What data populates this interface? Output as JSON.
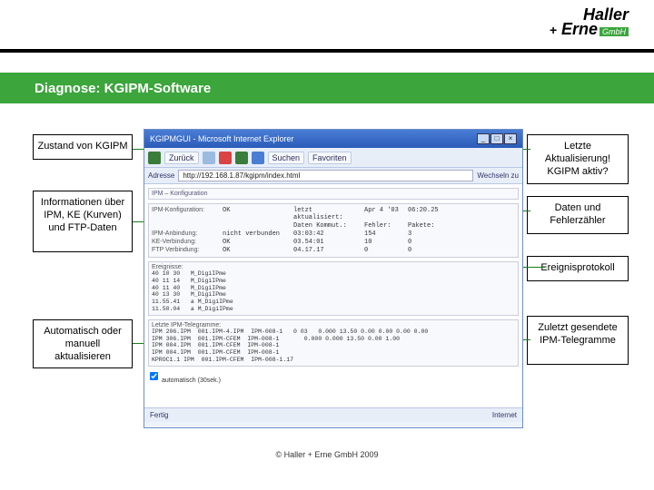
{
  "logo": {
    "line1": "Haller",
    "plus": "+",
    "line2": "Erne",
    "gmbh": "GmbH"
  },
  "header": {
    "title": "Diagnose: KGIPM-Software"
  },
  "callouts": {
    "left": [
      "Zustand von KGIPM",
      "Informationen über IPM, KE (Kurven) und FTP-Daten",
      "Automatisch oder manuell aktualisieren"
    ],
    "right": [
      "Letzte Aktualisierung! KGIPM aktiv?",
      "Daten und Fehlerzähler",
      "Ereignisprotokoll",
      "Zuletzt gesendete IPM-Telegramme"
    ]
  },
  "window": {
    "title": "KGIPMGUI - Microsoft Internet Explorer",
    "toolbar": {
      "back": "Zurück",
      "search": "Suchen",
      "fav": "Favoriten",
      "addr_label": "Adresse",
      "url": "http://192.168.1.87/kgipm/index.html",
      "go": "Wechseln zu"
    },
    "section_state": "IPM – Konfiguration",
    "info": {
      "rows": [
        {
          "lbl": "IPM-Konfiguration:",
          "v1": "OK",
          "v2": "letzt aktualisiert:",
          "v3": "Apr 4 '03",
          "v4": "06:20.25"
        },
        {
          "lbl": "",
          "v1": "",
          "v2": "Daten Kommut.:",
          "v3": "Fehler:",
          "v4": "Pakete:"
        },
        {
          "lbl": "IPM-Anbindung:",
          "v1": "nicht verbunden",
          "v2": "03:03:42",
          "v3": "154",
          "v4": "3"
        },
        {
          "lbl": "KE-Verbindung:",
          "v1": "OK",
          "v2": "03.54:01",
          "v3": "10",
          "v4": "0"
        },
        {
          "lbl": "FTP Verbindung:",
          "v1": "OK",
          "v2": "04.17.17",
          "v3": "0",
          "v4": "0"
        }
      ]
    },
    "events_label": "Ereignisse:",
    "events": [
      "40 10 30   M_DigiIPme",
      "40 11 14   M_DigiIPme",
      "40 11 40   M_DigiIPme",
      "40 13 30   M_DigiIPme",
      "11.55.41   a M_DigiIPme",
      "11.50.04   a M_DigiIPme"
    ],
    "telegrams_label": "Letzte IPM-Telegramme:",
    "telegrams": [
      "IPM 206.IPM  001.IPM-4.IPM  IPM-008-1   0 03   0.000 13.50 0.00 0.00 0.00 0.00",
      "IPM 306.IPM  001.IPM-CFEM  IPM-008-1       0.000 0.000 13.50 0.00 1.00",
      "IPM 004.IPM  001.IPM-CFEM  IPM-008-1",
      "IPM 004.IPM  001.IPM-CFEM  IPM-008-1",
      "KPROC1.1 IPM  001.IPM-CFEM  IPM-008-1.17"
    ],
    "refresh_opts": "automatisch (30sek.)",
    "status_left": "Fertig",
    "status_right": "Internet"
  },
  "footer": "© Haller + Erne GmbH 2009",
  "colors": {
    "green": "#3ca53c",
    "connector": "#197c19",
    "ie_blue": "#2a5bb8"
  }
}
